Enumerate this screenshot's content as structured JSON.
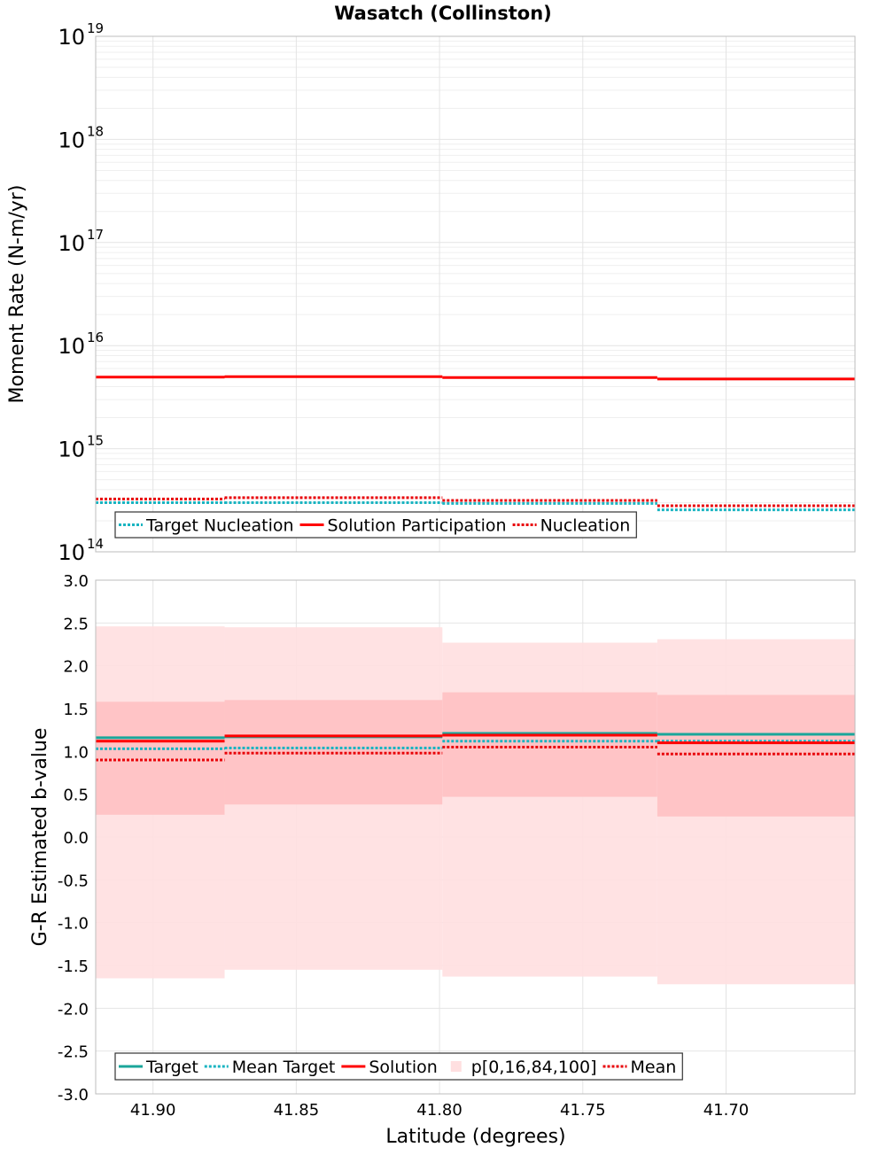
{
  "colors": {
    "target": "#1aa69a",
    "mean_target": "#19b4c1",
    "solution": "#ff0000",
    "mean": "#e8050a",
    "band_outer": "#ffdfe0",
    "band_inner": "#ffc4c6",
    "grid": "#e4e4e4",
    "frame": "#bdbdbd"
  },
  "chart_data": [
    {
      "type": "line",
      "title": "Wasatch (Collinston)",
      "xlabel": "",
      "ylabel": "Moment Rate (N-m/yr)",
      "yscale": "log",
      "ylim": [
        100000000000000.0,
        1e+19
      ],
      "xlim": [
        41.92,
        41.655
      ],
      "step": true,
      "y_tick_base": "10",
      "y_tick_exponents": [
        "14",
        "15",
        "16",
        "17",
        "18",
        "19"
      ],
      "segments_x": [
        [
          41.92,
          41.875
        ],
        [
          41.875,
          41.799
        ],
        [
          41.799,
          41.724
        ],
        [
          41.724,
          41.655
        ]
      ],
      "series": [
        {
          "name": "Target Nucleation",
          "style": "dotted",
          "color_key": "mean_target",
          "values": [
            300000000000000.0,
            300000000000000.0,
            295000000000000.0,
            255000000000000.0
          ]
        },
        {
          "name": "Solution Participation",
          "style": "solid",
          "color_key": "solution",
          "values": [
            4950000000000000.0,
            5000000000000000.0,
            4900000000000000.0,
            4750000000000000.0
          ]
        },
        {
          "name": "Nucleation",
          "style": "dotted",
          "color_key": "mean",
          "values": [
            325000000000000.0,
            335000000000000.0,
            315000000000000.0,
            280000000000000.0
          ]
        }
      ],
      "legend": {
        "position": "lower-left",
        "entries": [
          {
            "label": "Target Nucleation",
            "style": "dotted",
            "color_key": "mean_target"
          },
          {
            "label": "Solution Participation",
            "style": "solid",
            "color_key": "solution"
          },
          {
            "label": "Nucleation",
            "style": "dotted",
            "color_key": "mean"
          }
        ]
      }
    },
    {
      "type": "line",
      "title": "",
      "xlabel": "Latitude (degrees)",
      "ylabel": "G-R Estimated b-value",
      "ylim": [
        -3.0,
        3.0
      ],
      "xlim": [
        41.92,
        41.655
      ],
      "step": true,
      "x_ticks": [
        "41.90",
        "41.85",
        "41.80",
        "41.75",
        "41.70"
      ],
      "x_tick_values": [
        41.9,
        41.85,
        41.8,
        41.75,
        41.7
      ],
      "y_ticks": [
        "-3.0",
        "-2.5",
        "-2.0",
        "-1.5",
        "-1.0",
        "-0.5",
        "0.0",
        "0.5",
        "1.0",
        "1.5",
        "2.0",
        "2.5",
        "3.0"
      ],
      "segments_x": [
        [
          41.92,
          41.875
        ],
        [
          41.875,
          41.799
        ],
        [
          41.799,
          41.724
        ],
        [
          41.724,
          41.655
        ]
      ],
      "bands": {
        "p0": [
          -1.65,
          -1.55,
          -1.63,
          -1.72
        ],
        "p16": [
          0.26,
          0.38,
          0.47,
          0.24
        ],
        "p84": [
          1.58,
          1.6,
          1.69,
          1.66
        ],
        "p100": [
          2.46,
          2.45,
          2.27,
          2.31
        ]
      },
      "series": [
        {
          "name": "Target",
          "style": "solid",
          "color_key": "target",
          "values": [
            1.16,
            1.17,
            1.21,
            1.2
          ]
        },
        {
          "name": "Mean Target",
          "style": "dotted",
          "color_key": "mean_target",
          "values": [
            1.03,
            1.04,
            1.12,
            1.12
          ]
        },
        {
          "name": "Solution",
          "style": "solid",
          "color_key": "solution",
          "values": [
            1.12,
            1.18,
            1.19,
            1.1
          ]
        },
        {
          "name": "Mean",
          "style": "dotted",
          "color_key": "mean",
          "values": [
            0.9,
            0.98,
            1.05,
            0.97
          ]
        }
      ],
      "legend": {
        "position": "lower-left",
        "entries": [
          {
            "label": "Target",
            "style": "solid",
            "color_key": "target"
          },
          {
            "label": "Mean Target",
            "style": "dotted",
            "color_key": "mean_target"
          },
          {
            "label": "Solution",
            "style": "solid",
            "color_key": "solution"
          },
          {
            "label": "p[0,16,84,100]",
            "style": "box",
            "color_key": "band_outer"
          },
          {
            "label": "Mean",
            "style": "dotted",
            "color_key": "mean"
          }
        ]
      }
    }
  ]
}
